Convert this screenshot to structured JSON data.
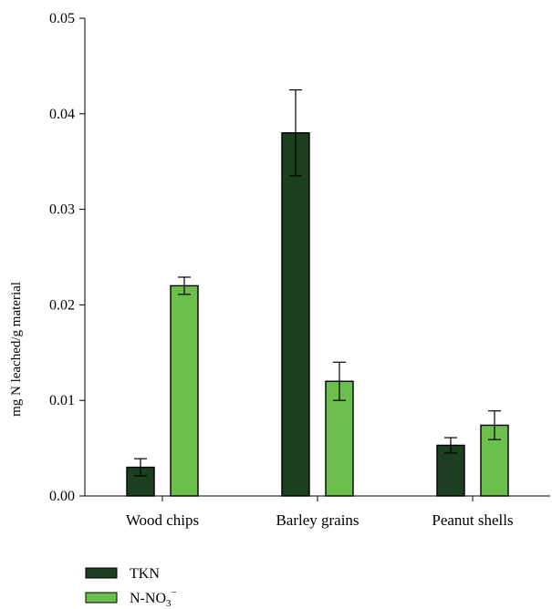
{
  "chart_data": {
    "type": "bar",
    "title": "",
    "xlabel": "",
    "ylabel": "mg N leached/g material",
    "ylim": [
      0,
      0.05
    ],
    "yticks": [
      "0.00",
      "0.01",
      "0.02",
      "0.03",
      "0.04",
      "0.05"
    ],
    "grid": false,
    "legend_position": "bottom-left",
    "categories": [
      "Wood chips",
      "Barley grains",
      "Peanut shells"
    ],
    "series": [
      {
        "name": "TKN",
        "color": "#1b3f1f",
        "values": [
          0.003,
          0.038,
          0.0053
        ],
        "errors": [
          0.0009,
          0.0045,
          0.0008
        ]
      },
      {
        "name_parts": [
          "N-NO",
          "3",
          "−"
        ],
        "color": "#6cbf4c",
        "values": [
          0.022,
          0.012,
          0.0074
        ],
        "errors": [
          0.0009,
          0.002,
          0.0015
        ]
      }
    ]
  }
}
